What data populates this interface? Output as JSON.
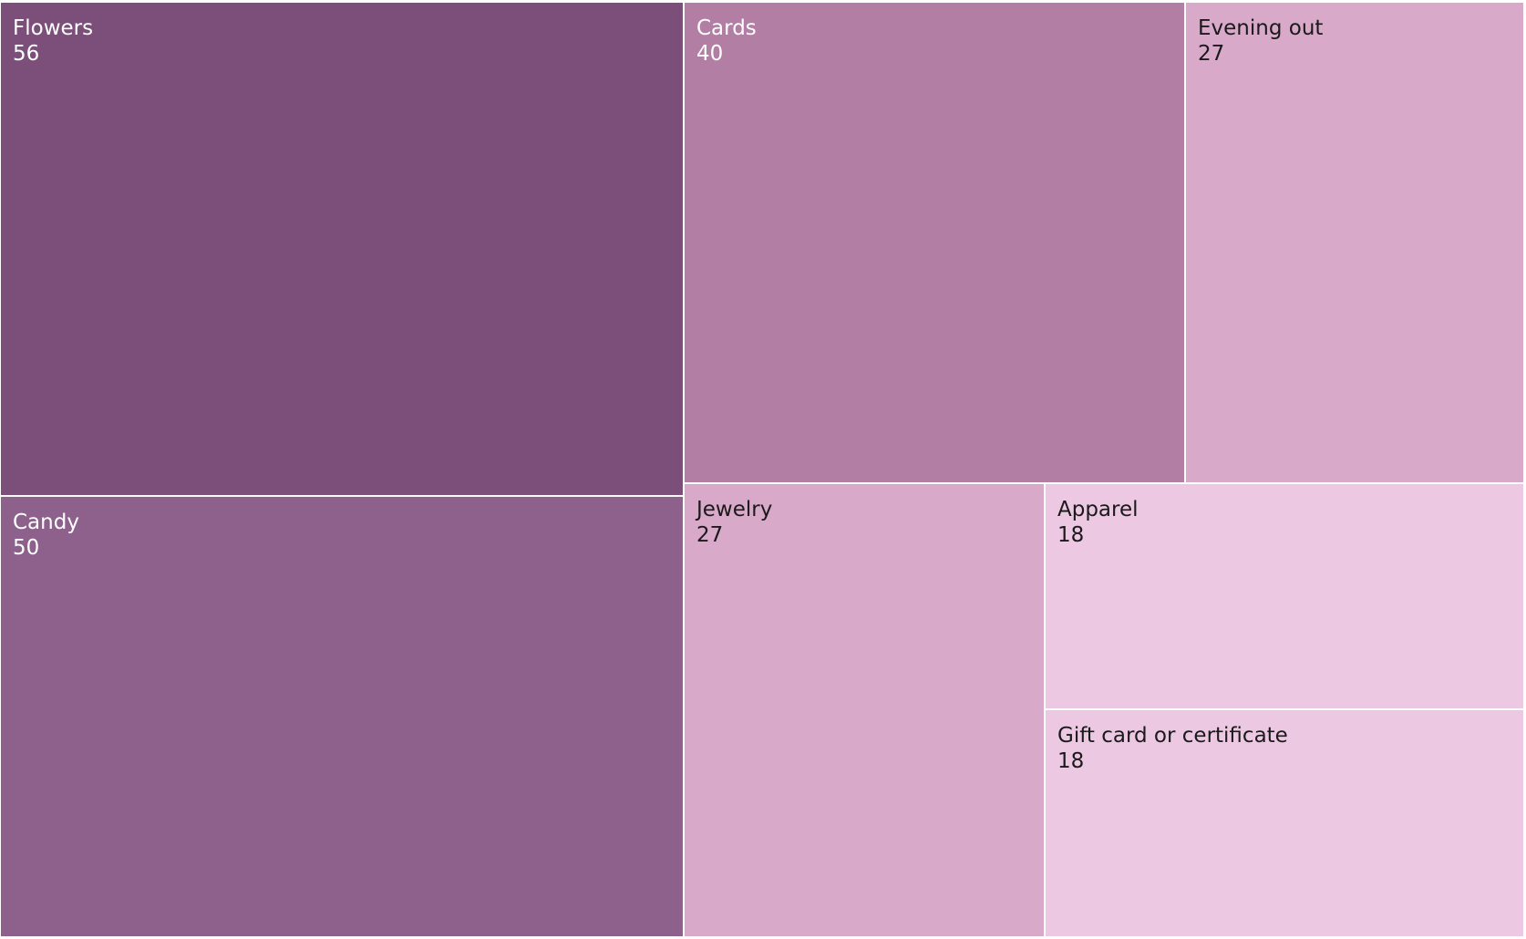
{
  "chart_data": {
    "type": "treemap",
    "items": [
      {
        "label": "Flowers",
        "value": 56,
        "color": "#7c4f7a",
        "text_color": "#ffffff"
      },
      {
        "label": "Candy",
        "value": 50,
        "color": "#8e618d",
        "text_color": "#ffffff"
      },
      {
        "label": "Cards",
        "value": 40,
        "color": "#b37ea3",
        "text_color": "#ffffff"
      },
      {
        "label": "Evening out",
        "value": 27,
        "color": "#d9a9c9",
        "text_color": "#1a1a1a"
      },
      {
        "label": "Jewelry",
        "value": 27,
        "color": "#d9a9c9",
        "text_color": "#1a1a1a"
      },
      {
        "label": "Apparel",
        "value": 18,
        "color": "#ecc8e3",
        "text_color": "#1a1a1a"
      },
      {
        "label": "Gift card or certificate",
        "value": 18,
        "color": "#ecc8e3",
        "text_color": "#1a1a1a"
      }
    ]
  }
}
